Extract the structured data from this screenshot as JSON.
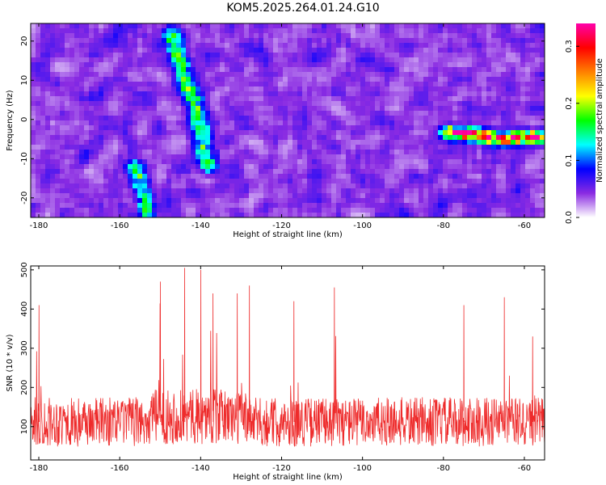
{
  "title": "KOM5.2025.264.01.24.G10",
  "chart_data": [
    {
      "type": "heatmap",
      "xlabel": "Height of straight line (km)",
      "ylabel": "Frequency (Hz)",
      "xlim": [
        -182,
        -55
      ],
      "ylim": [
        -25,
        24.5
      ],
      "xticks": [
        -180,
        -160,
        -140,
        -120,
        -100,
        -80,
        -60
      ],
      "yticks": [
        -20,
        -10,
        0,
        10,
        20
      ],
      "colorbar": {
        "label": "Normalized spectral amplitude",
        "range": [
          0.0,
          0.34
        ],
        "ticks": [
          0.0,
          0.1,
          0.2,
          0.3
        ],
        "tick_labels": [
          "0.0",
          "0.1",
          "0.2",
          "0.3"
        ],
        "colormap": [
          "#ffffff",
          "#8a2be2",
          "#0000ff",
          "#00ffff",
          "#00ff00",
          "#ffff00",
          "#ff8000",
          "#ff0000",
          "#ff00aa"
        ]
      },
      "background_level": 0.05,
      "features": [
        {
          "name": "bright track",
          "points": [
            [
              -147,
              22
            ],
            [
              -145,
              14
            ],
            [
              -143,
              8
            ],
            [
              -141,
              3
            ],
            [
              -140,
              -2
            ],
            [
              -139,
              -8
            ],
            [
              -138,
              -12
            ]
          ],
          "level": 0.12
        },
        {
          "name": "lower track",
          "points": [
            [
              -156,
              -12
            ],
            [
              -155,
              -16
            ],
            [
              -154,
              -20
            ],
            [
              -153,
              -24
            ]
          ],
          "level": 0.11
        },
        {
          "name": "right streak",
          "points": [
            [
              -78,
              -3.5
            ],
            [
              -72,
              -4
            ],
            [
              -66,
              -5
            ],
            [
              -60,
              -4.5
            ],
            [
              -56,
              -4.5
            ]
          ],
          "level": 0.25
        }
      ]
    },
    {
      "type": "line",
      "xlabel": "Height of straight line (km)",
      "ylabel": "SNR (10 * v/v)",
      "xlim": [
        -182,
        -55
      ],
      "ylim": [
        15,
        510
      ],
      "xticks": [
        -180,
        -160,
        -140,
        -120,
        -100,
        -80,
        -60
      ],
      "yticks": [
        100,
        200,
        300,
        400,
        500
      ],
      "series": [
        {
          "color": "#ee2b2b",
          "mean": 140,
          "min": 20,
          "max": 505,
          "peaks": [
            [
              -180,
              410
            ],
            [
              -150,
              470
            ],
            [
              -144,
              505
            ],
            [
              -140,
              500
            ],
            [
              -137,
              440
            ],
            [
              -131,
              440
            ],
            [
              -128,
              460
            ],
            [
              -117,
              420
            ],
            [
              -107,
              455
            ],
            [
              -75,
              410
            ],
            [
              -65,
              430
            ],
            [
              -58,
              330
            ]
          ]
        }
      ]
    }
  ],
  "colors": {
    "axis": "#000000",
    "line": "#ee2b2b"
  }
}
